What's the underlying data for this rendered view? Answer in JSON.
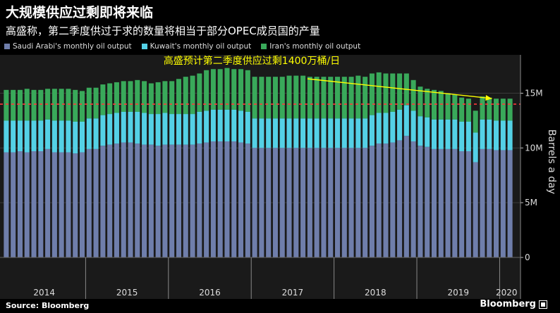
{
  "title": "大规模供应过剩即将来临",
  "subtitle": "高盛称，第二季度供过于求的数量将相当于部分OPEC成员国的产量",
  "source": "Source: Bloomberg",
  "brand": "Bloomberg",
  "colors": {
    "background": "#000000",
    "saudi": "#6f7eab",
    "kuwait": "#54d1e6",
    "iran": "#39a95a",
    "annotation": "#ffff00",
    "threshold": "#ff3b3b"
  },
  "chart_data": {
    "type": "bar",
    "stacked": true,
    "ylabel": "Barrels a day",
    "ylim": [
      0,
      18500000
    ],
    "y_ticks": [
      0,
      5000000,
      10000000,
      15000000
    ],
    "y_tick_labels": [
      "0",
      "5M",
      "10M",
      "15M"
    ],
    "y_axis_side": "right",
    "grid": true,
    "legend_position": "top-left",
    "year_labels": [
      "2014",
      "2015",
      "2016",
      "2017",
      "2018",
      "2019",
      "2020"
    ],
    "annotation": {
      "text": "高盛预计第二季度供应过剩1400万桶/日",
      "value": 14000000,
      "arrow_target_month": "2019-12"
    },
    "categories": [
      "2014-01",
      "2014-02",
      "2014-03",
      "2014-04",
      "2014-05",
      "2014-06",
      "2014-07",
      "2014-08",
      "2014-09",
      "2014-10",
      "2014-11",
      "2014-12",
      "2015-01",
      "2015-02",
      "2015-03",
      "2015-04",
      "2015-05",
      "2015-06",
      "2015-07",
      "2015-08",
      "2015-09",
      "2015-10",
      "2015-11",
      "2015-12",
      "2016-01",
      "2016-02",
      "2016-03",
      "2016-04",
      "2016-05",
      "2016-06",
      "2016-07",
      "2016-08",
      "2016-09",
      "2016-10",
      "2016-11",
      "2016-12",
      "2017-01",
      "2017-02",
      "2017-03",
      "2017-04",
      "2017-05",
      "2017-06",
      "2017-07",
      "2017-08",
      "2017-09",
      "2017-10",
      "2017-11",
      "2017-12",
      "2018-01",
      "2018-02",
      "2018-03",
      "2018-04",
      "2018-05",
      "2018-06",
      "2018-07",
      "2018-08",
      "2018-09",
      "2018-10",
      "2018-11",
      "2018-12",
      "2019-01",
      "2019-02",
      "2019-03",
      "2019-04",
      "2019-05",
      "2019-06",
      "2019-07",
      "2019-08",
      "2019-09",
      "2019-10",
      "2019-11",
      "2019-12",
      "2020-01",
      "2020-02"
    ],
    "series": [
      {
        "name": "Saudi Arabi's monthly oil output",
        "values": [
          9600000,
          9600000,
          9700000,
          9600000,
          9700000,
          9700000,
          9900000,
          9600000,
          9600000,
          9600000,
          9500000,
          9600000,
          9900000,
          9900000,
          10200000,
          10300000,
          10400000,
          10500000,
          10500000,
          10400000,
          10300000,
          10300000,
          10200000,
          10300000,
          10300000,
          10300000,
          10300000,
          10300000,
          10400000,
          10500000,
          10600000,
          10600000,
          10600000,
          10600000,
          10500000,
          10400000,
          10000000,
          10000000,
          10000000,
          10000000,
          10000000,
          10000000,
          10000000,
          10000000,
          10000000,
          10000000,
          10000000,
          10000000,
          10000000,
          10000000,
          10000000,
          10000000,
          10000000,
          10200000,
          10400000,
          10400000,
          10500000,
          10700000,
          11100000,
          10600000,
          10200000,
          10100000,
          9900000,
          9900000,
          9900000,
          9900000,
          9700000,
          9700000,
          8700000,
          9900000,
          9900000,
          9800000,
          9800000,
          9800000
        ]
      },
      {
        "name": "Kuwait's monthly oil output",
        "values": [
          2900000,
          2900000,
          2800000,
          2900000,
          2800000,
          2800000,
          2700000,
          2900000,
          2900000,
          2900000,
          2900000,
          2800000,
          2800000,
          2800000,
          2800000,
          2800000,
          2800000,
          2800000,
          2800000,
          2900000,
          2900000,
          2800000,
          2900000,
          2900000,
          2800000,
          2800000,
          2800000,
          2800000,
          2900000,
          2900000,
          2900000,
          2900000,
          2900000,
          2900000,
          2900000,
          2900000,
          2700000,
          2700000,
          2700000,
          2700000,
          2700000,
          2700000,
          2700000,
          2700000,
          2700000,
          2700000,
          2700000,
          2700000,
          2700000,
          2700000,
          2700000,
          2700000,
          2700000,
          2800000,
          2800000,
          2800000,
          2800000,
          2800000,
          2800000,
          2800000,
          2700000,
          2700000,
          2700000,
          2700000,
          2700000,
          2700000,
          2700000,
          2700000,
          2700000,
          2700000,
          2700000,
          2700000,
          2700000,
          2700000
        ]
      },
      {
        "name": "Iran's monthly oil output",
        "values": [
          2800000,
          2800000,
          2800000,
          2900000,
          2800000,
          2800000,
          2800000,
          2900000,
          2900000,
          2900000,
          2900000,
          2800000,
          2800000,
          2800000,
          2800000,
          2800000,
          2800000,
          2800000,
          2800000,
          2900000,
          2900000,
          2800000,
          2900000,
          2900000,
          3000000,
          3200000,
          3400000,
          3500000,
          3500000,
          3700000,
          3700000,
          3700000,
          3800000,
          3700000,
          3800000,
          3800000,
          3800000,
          3800000,
          3800000,
          3800000,
          3800000,
          3900000,
          3900000,
          3900000,
          3800000,
          3800000,
          3800000,
          3800000,
          3800000,
          3800000,
          3800000,
          3900000,
          3800000,
          3800000,
          3700000,
          3600000,
          3500000,
          3300000,
          2900000,
          2800000,
          2700000,
          2600000,
          2700000,
          2600000,
          2400000,
          2300000,
          2200000,
          2100000,
          2000000,
          2100000,
          2000000,
          2000000,
          2000000,
          2000000
        ]
      }
    ]
  }
}
